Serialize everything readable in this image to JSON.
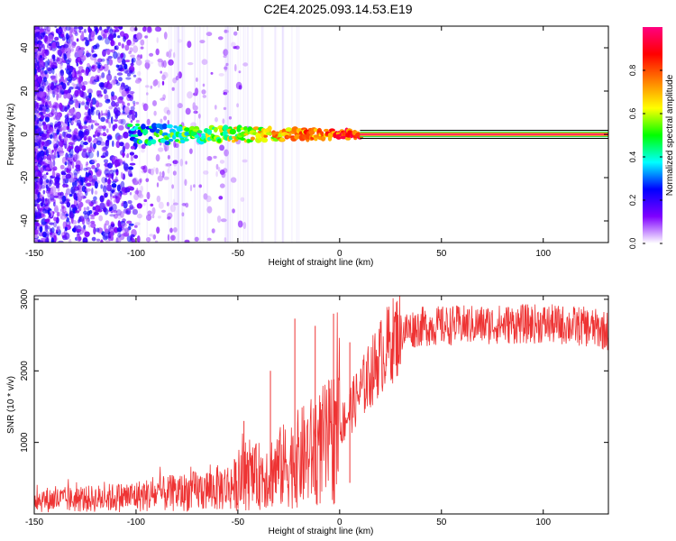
{
  "title": "C2E4.2025.093.14.53.E19",
  "chart_data": [
    {
      "type": "heatmap",
      "xlabel": "Height of straight line (km)",
      "ylabel": "Frequency (Hz)",
      "xlim": [
        -150,
        132
      ],
      "ylim": [
        -50,
        50
      ],
      "xticks": [
        -150,
        -100,
        -50,
        0,
        50,
        100
      ],
      "yticks": [
        -40,
        -20,
        0,
        20,
        40
      ],
      "colorbar": {
        "label": "Normalized spectral amplitude",
        "range": [
          0,
          1
        ],
        "ticks": [
          "0.0",
          "0.2",
          "0.4",
          "0.6",
          "0.8"
        ],
        "colors": [
          "#ffffff",
          "#7f00ff",
          "#0000ff",
          "#00ffff",
          "#00ff00",
          "#ffff00",
          "#ff8000",
          "#ff0000",
          "#ff0080"
        ]
      },
      "ridge": {
        "frequency": 0,
        "segments": [
          {
            "x_start": -103,
            "x_end": 10,
            "amplitude": 0.5
          },
          {
            "x_start": 10,
            "x_end": 132,
            "amplitude": 0.95
          }
        ]
      },
      "noise_region": {
        "x_start": -150,
        "x_end": -55,
        "amplitude": 0.15
      }
    },
    {
      "type": "line",
      "xlabel": "Height of straight line (km)",
      "ylabel": "SNR (10 * v/v)",
      "xlim": [
        -150,
        132
      ],
      "ylim": [
        0,
        3050
      ],
      "xticks": [
        -150,
        -100,
        -50,
        0,
        50,
        100
      ],
      "yticks": [
        1000,
        2000,
        3000
      ],
      "color": "#ee3333",
      "envelope": {
        "x": [
          -150,
          -130,
          -110,
          -90,
          -70,
          -55,
          -45,
          -35,
          -25,
          -15,
          -5,
          0,
          5,
          10,
          15,
          20,
          25,
          30,
          40,
          60,
          80,
          100,
          120,
          132
        ],
        "y": [
          200,
          200,
          230,
          270,
          320,
          380,
          480,
          580,
          700,
          850,
          1000,
          1200,
          1450,
          1700,
          1950,
          2200,
          2400,
          2550,
          2620,
          2640,
          2650,
          2660,
          2620,
          2560
        ]
      },
      "spikes": [
        {
          "x": -47,
          "y": 1300
        },
        {
          "x": -34,
          "y": 2000
        },
        {
          "x": -22,
          "y": 2730
        },
        {
          "x": -12,
          "y": 2630
        },
        {
          "x": -3,
          "y": 2800
        },
        {
          "x": 5,
          "y": 2400
        }
      ]
    }
  ]
}
